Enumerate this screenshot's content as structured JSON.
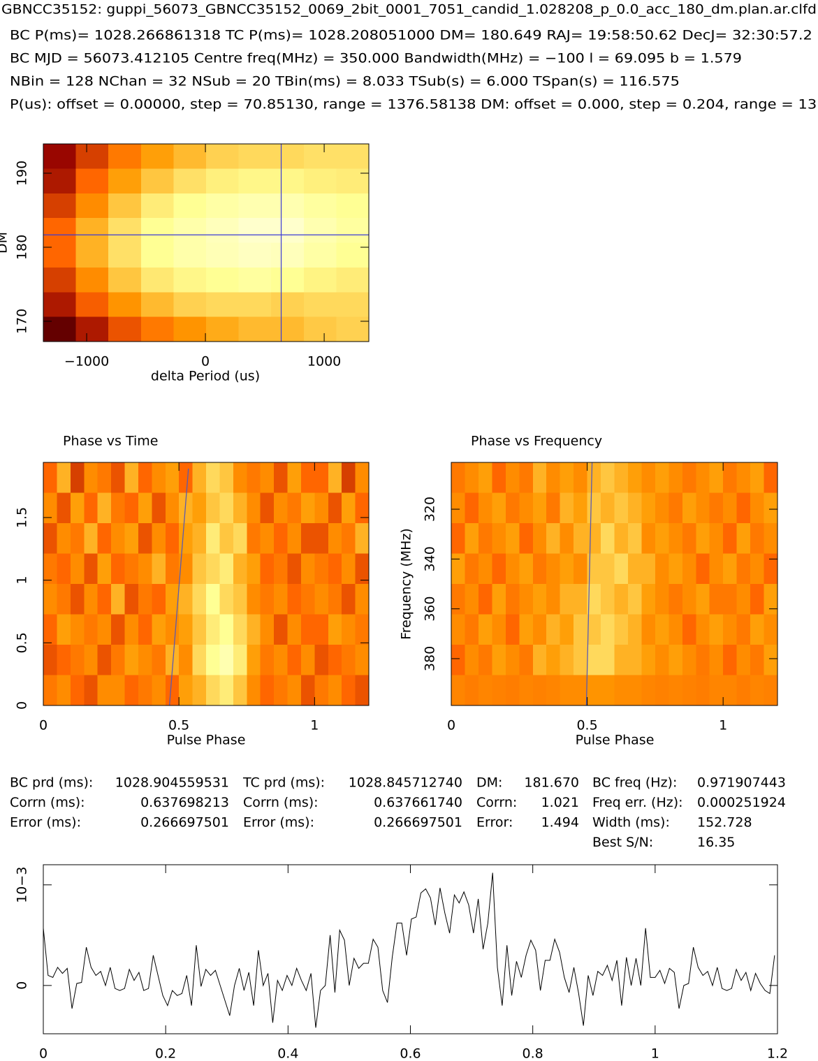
{
  "header": {
    "title": "GBNCC35152: guppi_56073_GBNCC35152_0069_2bit_0001_7051_candid_1.028208_p_0.0_acc_180_dm.plan.ar.clfd",
    "lines": [
      "BC P(ms)= 1028.266861318 TC P(ms)= 1028.208051000 DM= 180.649 RAJ= 19:58:50.62 DecJ= 32:30:57.2",
      "BC MJD = 56073.412105 Centre freq(MHz) = 350.000 Bandwidth(MHz) = −100 l = 69.095 b = 1.579",
      "NBin = 128 NChan = 32 NSub = 20 TBin(ms) = 8.033 TSub(s) = 6.000 TSpan(s) = 116.575",
      "P(us): offset = 0.00000, step = 70.85130, range = 1376.58138 DM: offset = 0.000, step = 0.204, range = 13."
    ]
  },
  "stats": {
    "rows": [
      [
        "BC prd (ms):",
        "1028.904559531",
        "TC prd (ms):",
        "1028.845712740",
        "DM:",
        "181.670",
        "BC freq (Hz):",
        "0.971907443"
      ],
      [
        "Corrn (ms):",
        "0.637698213",
        "Corrn (ms):",
        "0.637661740",
        "Corrn:",
        "1.021",
        "Freq err. (Hz):",
        "0.000251924"
      ],
      [
        "Error (ms):",
        "0.266697501",
        "Error (ms):",
        "0.266697501",
        "Error:",
        "1.494",
        "Width (ms):",
        "152.728"
      ],
      [
        "Best S/N:",
        "16.35"
      ]
    ]
  },
  "chart_data": [
    {
      "type": "heatmap",
      "xlabel": "delta Period (us)",
      "ylabel": "DM",
      "xlim": [
        -1365,
        1376
      ],
      "ylim": [
        167.26,
        193.96
      ],
      "xticks": [
        {
          "value": -1000,
          "label": "−1000"
        },
        0,
        1000
      ],
      "yticks": [
        170,
        180,
        190
      ],
      "crosshair": {
        "x": 638,
        "y": 181.67
      },
      "crosshair_color": "#3a3ad6",
      "z": [
        [
          0.25,
          0.4,
          0.55,
          0.65,
          0.72,
          0.78,
          0.8,
          0.8,
          0.82,
          0.82
        ],
        [
          0.3,
          0.5,
          0.65,
          0.75,
          0.82,
          0.86,
          0.88,
          0.88,
          0.86,
          0.85
        ],
        [
          0.4,
          0.6,
          0.75,
          0.85,
          0.9,
          0.93,
          0.95,
          0.95,
          0.92,
          0.9
        ],
        [
          0.5,
          0.7,
          0.82,
          0.9,
          0.94,
          0.97,
          1.0,
          1.0,
          0.95,
          0.92
        ],
        [
          0.5,
          0.7,
          0.82,
          0.9,
          0.94,
          0.96,
          0.98,
          0.97,
          0.93,
          0.9
        ],
        [
          0.4,
          0.6,
          0.75,
          0.84,
          0.88,
          0.9,
          0.92,
          0.9,
          0.87,
          0.85
        ],
        [
          0.3,
          0.48,
          0.62,
          0.72,
          0.78,
          0.8,
          0.8,
          0.78,
          0.8,
          0.8
        ],
        [
          0.12,
          0.3,
          0.45,
          0.55,
          0.62,
          0.68,
          0.72,
          0.72,
          0.76,
          0.78
        ]
      ]
    },
    {
      "type": "heatmap",
      "title": "Phase vs Time",
      "xlabel": "Pulse Phase",
      "xlim": [
        0,
        1.2
      ],
      "ylim": [
        0,
        1.94
      ],
      "xticks": [
        0,
        0.5,
        1
      ],
      "yticks": [
        0,
        0.5,
        1,
        1.5
      ],
      "fold_line": {
        "x": [
          0.465,
          0.535
        ],
        "y": [
          0,
          1.89
        ]
      },
      "fold_color": "#5a5ab0",
      "z": [
        [
          0.5,
          0.7,
          0.4,
          0.6,
          0.55,
          0.45,
          0.7,
          0.5,
          0.6,
          0.65,
          0.5,
          0.7,
          0.8,
          0.75,
          0.6,
          0.55,
          0.6,
          0.45,
          0.65,
          0.5,
          0.5,
          0.7,
          0.4,
          0.6
        ],
        [
          0.6,
          0.45,
          0.65,
          0.5,
          0.7,
          0.55,
          0.5,
          0.65,
          0.45,
          0.6,
          0.7,
          0.65,
          0.75,
          0.8,
          0.7,
          0.6,
          0.45,
          0.6,
          0.55,
          0.65,
          0.6,
          0.45,
          0.65,
          0.5
        ],
        [
          0.45,
          0.6,
          0.55,
          0.7,
          0.5,
          0.6,
          0.65,
          0.45,
          0.6,
          0.5,
          0.65,
          0.7,
          0.85,
          0.75,
          0.8,
          0.55,
          0.6,
          0.5,
          0.6,
          0.45,
          0.45,
          0.6,
          0.55,
          0.7
        ],
        [
          0.55,
          0.5,
          0.6,
          0.45,
          0.65,
          0.5,
          0.55,
          0.6,
          0.7,
          0.55,
          0.6,
          0.75,
          0.8,
          0.85,
          0.7,
          0.65,
          0.5,
          0.55,
          0.45,
          0.6,
          0.55,
          0.5,
          0.6,
          0.45
        ],
        [
          0.6,
          0.55,
          0.45,
          0.6,
          0.5,
          0.7,
          0.45,
          0.55,
          0.5,
          0.65,
          0.7,
          0.8,
          0.9,
          0.8,
          0.75,
          0.6,
          0.55,
          0.6,
          0.5,
          0.55,
          0.6,
          0.55,
          0.45,
          0.6
        ],
        [
          0.5,
          0.65,
          0.6,
          0.55,
          0.6,
          0.45,
          0.6,
          0.5,
          0.65,
          0.6,
          0.65,
          0.75,
          0.85,
          0.9,
          0.8,
          0.7,
          0.6,
          0.45,
          0.6,
          0.5,
          0.5,
          0.65,
          0.6,
          0.55
        ],
        [
          0.45,
          0.5,
          0.55,
          0.6,
          0.45,
          0.55,
          0.65,
          0.6,
          0.55,
          0.7,
          0.6,
          0.8,
          0.9,
          0.95,
          0.85,
          0.65,
          0.55,
          0.6,
          0.5,
          0.6,
          0.45,
          0.5,
          0.55,
          0.6
        ],
        [
          0.55,
          0.6,
          0.5,
          0.45,
          0.6,
          0.6,
          0.5,
          0.55,
          0.6,
          0.5,
          0.65,
          0.7,
          0.8,
          0.85,
          0.75,
          0.6,
          0.5,
          0.55,
          0.6,
          0.45,
          0.55,
          0.6,
          0.5,
          0.45
        ]
      ]
    },
    {
      "type": "heatmap",
      "title": "Phase vs Frequency",
      "xlabel": "Pulse Phase",
      "ylabel": "Frequency (MHz)",
      "xlim": [
        0,
        1.2
      ],
      "ylim": [
        398.8,
        301.2
      ],
      "xticks": [
        0,
        0.5,
        1
      ],
      "yticks": [
        320,
        340,
        360,
        380
      ],
      "fold_line": {
        "x": [
          0.497,
          0.518
        ],
        "y": [
          398.8,
          301.2
        ]
      },
      "fold_color": "#5a5ab0",
      "z": [
        [
          0.55,
          0.6,
          0.65,
          0.5,
          0.6,
          0.55,
          0.7,
          0.6,
          0.65,
          0.6,
          0.7,
          0.75,
          0.7,
          0.65,
          0.6,
          0.65,
          0.6,
          0.55,
          0.6,
          0.65,
          0.55,
          0.6,
          0.65,
          0.5
        ],
        [
          0.6,
          0.5,
          0.6,
          0.65,
          0.55,
          0.6,
          0.65,
          0.55,
          0.7,
          0.65,
          0.75,
          0.7,
          0.75,
          0.7,
          0.65,
          0.6,
          0.55,
          0.65,
          0.6,
          0.55,
          0.6,
          0.5,
          0.6,
          0.65
        ],
        [
          0.5,
          0.65,
          0.55,
          0.6,
          0.65,
          0.5,
          0.6,
          0.7,
          0.6,
          0.7,
          0.7,
          0.8,
          0.7,
          0.75,
          0.6,
          0.65,
          0.6,
          0.55,
          0.65,
          0.6,
          0.5,
          0.65,
          0.55,
          0.6
        ],
        [
          0.65,
          0.55,
          0.6,
          0.5,
          0.6,
          0.65,
          0.55,
          0.6,
          0.65,
          0.6,
          0.75,
          0.75,
          0.8,
          0.7,
          0.7,
          0.6,
          0.65,
          0.6,
          0.5,
          0.6,
          0.65,
          0.55,
          0.6,
          0.5
        ],
        [
          0.55,
          0.6,
          0.5,
          0.65,
          0.55,
          0.6,
          0.65,
          0.6,
          0.7,
          0.7,
          0.8,
          0.75,
          0.7,
          0.75,
          0.65,
          0.6,
          0.55,
          0.6,
          0.65,
          0.55,
          0.55,
          0.6,
          0.5,
          0.65
        ],
        [
          0.6,
          0.55,
          0.65,
          0.6,
          0.5,
          0.65,
          0.6,
          0.7,
          0.65,
          0.75,
          0.75,
          0.8,
          0.75,
          0.7,
          0.6,
          0.65,
          0.6,
          0.5,
          0.6,
          0.65,
          0.6,
          0.55,
          0.65,
          0.6
        ],
        [
          0.5,
          0.6,
          0.55,
          0.65,
          0.6,
          0.55,
          0.7,
          0.65,
          0.7,
          0.75,
          0.8,
          0.8,
          0.7,
          0.7,
          0.65,
          0.6,
          0.65,
          0.6,
          0.55,
          0.6,
          0.5,
          0.6,
          0.55,
          0.65
        ],
        [
          0.58,
          0.56,
          0.58,
          0.57,
          0.56,
          0.58,
          0.57,
          0.58,
          0.6,
          0.6,
          0.62,
          0.62,
          0.6,
          0.6,
          0.58,
          0.57,
          0.58,
          0.57,
          0.56,
          0.58,
          0.58,
          0.56,
          0.58,
          0.57
        ]
      ]
    },
    {
      "type": "line",
      "color": "#000000",
      "xlim": [
        0,
        1.2
      ],
      "ylim": [
        -0.00048,
        0.0012
      ],
      "xticks": [
        0,
        0.2,
        0.4,
        0.6,
        0.8,
        1,
        1.2
      ],
      "yticks": [
        0,
        {
          "value": 0.001,
          "label": "10−3"
        }
      ],
      "x": [
        0,
        0.0078,
        0.0156,
        0.0234,
        0.0313,
        0.0391,
        0.0469,
        0.0547,
        0.0625,
        0.0703,
        0.0781,
        0.0859,
        0.0938,
        0.1016,
        0.1094,
        0.1172,
        0.125,
        0.1328,
        0.1406,
        0.1484,
        0.1563,
        0.1641,
        0.1719,
        0.1797,
        0.1875,
        0.1953,
        0.2031,
        0.2109,
        0.2188,
        0.2266,
        0.2344,
        0.2422,
        0.25,
        0.2578,
        0.2656,
        0.2734,
        0.2813,
        0.2891,
        0.2969,
        0.3047,
        0.3125,
        0.3203,
        0.3281,
        0.3359,
        0.3438,
        0.3516,
        0.3594,
        0.3672,
        0.375,
        0.3828,
        0.3906,
        0.3984,
        0.4063,
        0.4141,
        0.4219,
        0.4297,
        0.4375,
        0.4453,
        0.4531,
        0.4609,
        0.4688,
        0.4766,
        0.4844,
        0.4922,
        0.5,
        0.5078,
        0.5156,
        0.5234,
        0.5313,
        0.5391,
        0.5469,
        0.5547,
        0.5625,
        0.5703,
        0.5781,
        0.5859,
        0.5938,
        0.6016,
        0.6094,
        0.6172,
        0.625,
        0.6328,
        0.6406,
        0.6484,
        0.6563,
        0.6641,
        0.6719,
        0.6797,
        0.6875,
        0.6953,
        0.7031,
        0.7109,
        0.7188,
        0.7266,
        0.7344,
        0.7422,
        0.75,
        0.7578,
        0.7656,
        0.7734,
        0.7813,
        0.7891,
        0.7969,
        0.8047,
        0.8125,
        0.8203,
        0.8281,
        0.8359,
        0.8438,
        0.8516,
        0.8594,
        0.8672,
        0.875,
        0.8828,
        0.8906,
        0.8984,
        0.9063,
        0.9141,
        0.9219,
        0.9297,
        0.9375,
        0.9453,
        0.9531,
        0.9609,
        0.9688,
        0.9766,
        0.9844,
        0.9922,
        1,
        1.0078,
        1.0156,
        1.0234,
        1.0313,
        1.0391,
        1.0469,
        1.0547,
        1.0625,
        1.0703,
        1.0781,
        1.0859,
        1.0938,
        1.1016,
        1.1094,
        1.1172,
        1.125,
        1.1328,
        1.1406,
        1.1484,
        1.1563,
        1.1641,
        1.1719,
        1.1797,
        1.1875,
        1.1953
      ],
      "values": [
        0.00057,
        0.0001,
        8e-05,
        0.00018,
        0.00012,
        0.00017,
        -0.00023,
        2e-05,
        3e-05,
        0.00038,
        0.00018,
        0.0001,
        0.00014,
        0,
        0.00018,
        -3e-05,
        -5e-05,
        -3e-05,
        0.00016,
        5e-05,
        0.00013,
        -5e-05,
        -3e-05,
        0.0003,
        0.0001,
        -0.0001,
        -0.0002,
        -5e-05,
        -0.0001,
        -8e-05,
        0.0001,
        -0.0002,
        0.0004,
        -1e-05,
        0.00016,
        0.0001,
        0.00015,
        0,
        -0.00015,
        -0.0003,
        0,
        0.00017,
        -5e-05,
        0.00013,
        -0.0002,
        0.00035,
        0,
        0.00012,
        -0.00037,
        5e-05,
        -5e-05,
        0.0001,
        0,
        0.00017,
        5e-05,
        -5e-05,
        0.00012,
        -0.00042,
        -5e-05,
        0,
        0.0005,
        -7e-05,
        0.00055,
        0.00045,
        0,
        0.00027,
        0.00017,
        0.00022,
        0.00022,
        0.00046,
        0.00038,
        -5e-05,
        -0.00017,
        0.00028,
        0.00062,
        0.00062,
        0.0003,
        0.00066,
        0.00068,
        0.00092,
        0.00096,
        0.00087,
        0.0006,
        0.00097,
        0.00072,
        0.00052,
        0.0009,
        0.00082,
        0.00093,
        0.0008,
        0.00052,
        0.00086,
        0.00036,
        0.00062,
        0.00112,
        0.00018,
        -0.0002,
        0.0004,
        -0.0001,
        0.00024,
        8e-05,
        0.0003,
        0.00045,
        0.00035,
        -5e-05,
        0.00025,
        0.00025,
        0.00046,
        0.00033,
        8e-05,
        -7e-05,
        0.00018,
        -8e-05,
        -0.0004,
        0.0001,
        -0.0001,
        0.00014,
        0.0001,
        0.0002,
        5e-05,
        0.00025,
        -0.0002,
        0.00028,
        0,
        0.00027,
        0,
        0.00057,
        8e-05,
        8e-05,
        0.00015,
        2e-05,
        0.00017,
        0.00013,
        -0.00023,
        0,
        2e-05,
        0.00038,
        0.00018,
        0.0001,
        0.00014,
        0,
        0.00018,
        -3e-05,
        -5e-05,
        -3e-05,
        0.00016,
        5e-05,
        0.00013,
        -5e-05,
        0.00012,
        2e-05,
        -5e-05,
        -8e-05,
        0.0003
      ]
    }
  ]
}
